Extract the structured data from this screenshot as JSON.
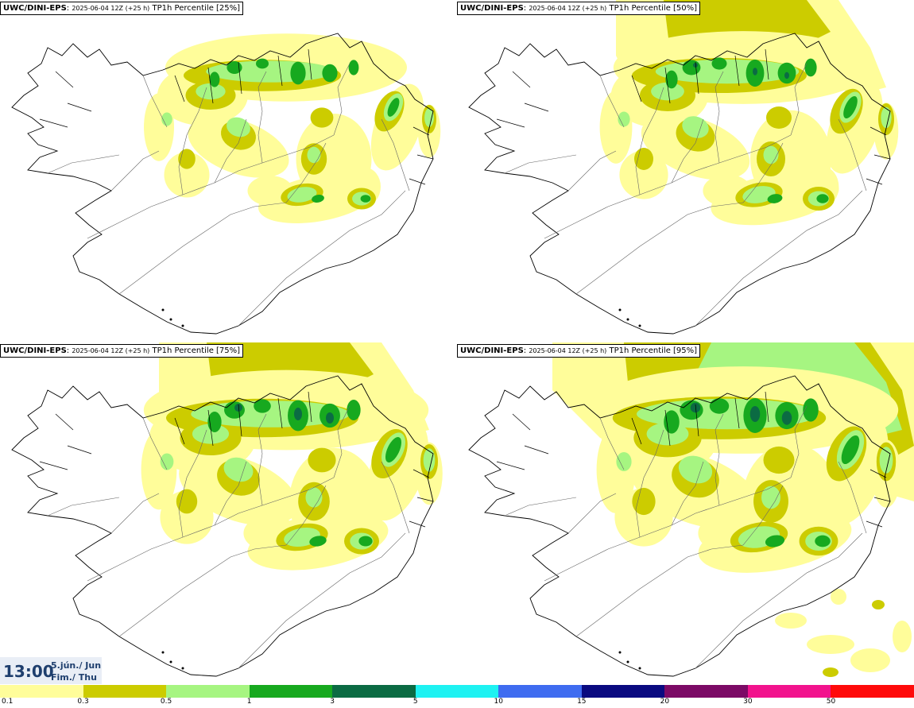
{
  "panels": [
    {
      "source": "UWC/DINI-EPS",
      "run": "2025-06-04 12Z (+25 h)",
      "product": "TP1h Percentile [25%]",
      "percentile": 25
    },
    {
      "source": "UWC/DINI-EPS",
      "run": "2025-06-04 12Z (+25 h)",
      "product": "TP1h Percentile [50%]",
      "percentile": 50
    },
    {
      "source": "UWC/DINI-EPS",
      "run": "2025-06-04 12Z (+25 h)",
      "product": "TP1h Percentile [75%]",
      "percentile": 75
    },
    {
      "source": "UWC/DINI-EPS",
      "run": "2025-06-04 12Z (+25 h)",
      "product": "TP1h Percentile [95%]",
      "percentile": 95
    }
  ],
  "timebox": {
    "time": "13:00",
    "date_line": "5.jún./ Jun",
    "day_line": "Fim./ Thu"
  },
  "colorbar": {
    "colors": [
      "#fffd9a",
      "#cccc00",
      "#a6f581",
      "#17a91f",
      "#0b6b43",
      "#1ef2f2",
      "#3f6cf0",
      "#0a0a80",
      "#7c0a66",
      "#f2138d",
      "#ff0a0a"
    ],
    "labels": [
      "0.1",
      "0.3",
      "0.5",
      "1",
      "3",
      "5",
      "10",
      "15",
      "20",
      "30",
      "50"
    ]
  },
  "map_colors": {
    "land": "#ffffff",
    "coast": "#000000",
    "roads": "#555555"
  }
}
